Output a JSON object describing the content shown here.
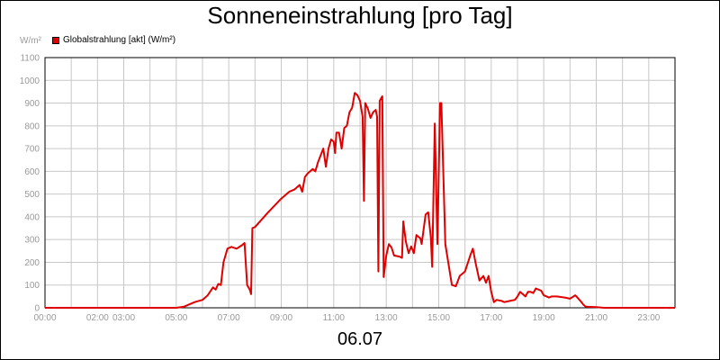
{
  "chart_data": {
    "type": "line",
    "title": "Sonneneinstrahlung [pro Tag]",
    "unit_label": "W/m²",
    "date_label": "06.07",
    "ylim": [
      0,
      1100
    ],
    "yticks": [
      0,
      100,
      200,
      300,
      400,
      500,
      600,
      700,
      800,
      900,
      1000,
      1100
    ],
    "xlim_hours": [
      0,
      24
    ],
    "xticks": [
      {
        "h": 0,
        "label": "00:00"
      },
      {
        "h": 2,
        "label": "02:00"
      },
      {
        "h": 3,
        "label": "03:00"
      },
      {
        "h": 5,
        "label": "05:00"
      },
      {
        "h": 7,
        "label": "07:00"
      },
      {
        "h": 9,
        "label": "09:00"
      },
      {
        "h": 11,
        "label": "11:00"
      },
      {
        "h": 13,
        "label": "13:00"
      },
      {
        "h": 15,
        "label": "15:00"
      },
      {
        "h": 17,
        "label": "17:00"
      },
      {
        "h": 19,
        "label": "19:00"
      },
      {
        "h": 21,
        "label": "21:00"
      },
      {
        "h": 23,
        "label": "23:00"
      }
    ],
    "grid": true,
    "legend_position": "top-left",
    "colors": {
      "series": "#e00000",
      "grid": "#c8c8c8",
      "tick": "#999999"
    },
    "series": [
      {
        "name": "Globalstrahlung [akt] (W/m²)",
        "points": [
          [
            0,
            0
          ],
          [
            5.0,
            0
          ],
          [
            5.3,
            5
          ],
          [
            5.5,
            15
          ],
          [
            5.7,
            25
          ],
          [
            6.0,
            35
          ],
          [
            6.2,
            55
          ],
          [
            6.4,
            90
          ],
          [
            6.5,
            80
          ],
          [
            6.6,
            105
          ],
          [
            6.7,
            100
          ],
          [
            6.8,
            200
          ],
          [
            6.95,
            260
          ],
          [
            7.1,
            268
          ],
          [
            7.3,
            260
          ],
          [
            7.5,
            275
          ],
          [
            7.6,
            285
          ],
          [
            7.7,
            100
          ],
          [
            7.8,
            80
          ],
          [
            7.85,
            60
          ],
          [
            7.9,
            350
          ],
          [
            8.0,
            355
          ],
          [
            8.5,
            420
          ],
          [
            9.0,
            480
          ],
          [
            9.3,
            510
          ],
          [
            9.5,
            520
          ],
          [
            9.7,
            540
          ],
          [
            9.8,
            510
          ],
          [
            9.9,
            575
          ],
          [
            10.0,
            590
          ],
          [
            10.2,
            610
          ],
          [
            10.3,
            600
          ],
          [
            10.4,
            640
          ],
          [
            10.6,
            700
          ],
          [
            10.7,
            620
          ],
          [
            10.8,
            700
          ],
          [
            10.9,
            740
          ],
          [
            11.0,
            730
          ],
          [
            11.05,
            680
          ],
          [
            11.1,
            770
          ],
          [
            11.2,
            770
          ],
          [
            11.3,
            700
          ],
          [
            11.4,
            790
          ],
          [
            11.5,
            800
          ],
          [
            11.6,
            860
          ],
          [
            11.7,
            880
          ],
          [
            11.8,
            945
          ],
          [
            11.9,
            935
          ],
          [
            12.0,
            910
          ],
          [
            12.1,
            840
          ],
          [
            12.15,
            470
          ],
          [
            12.2,
            900
          ],
          [
            12.3,
            875
          ],
          [
            12.4,
            835
          ],
          [
            12.5,
            860
          ],
          [
            12.6,
            870
          ],
          [
            12.65,
            840
          ],
          [
            12.7,
            160
          ],
          [
            12.75,
            910
          ],
          [
            12.85,
            930
          ],
          [
            12.9,
            135
          ],
          [
            13.0,
            230
          ],
          [
            13.1,
            280
          ],
          [
            13.2,
            265
          ],
          [
            13.3,
            230
          ],
          [
            13.5,
            225
          ],
          [
            13.6,
            220
          ],
          [
            13.65,
            380
          ],
          [
            13.75,
            290
          ],
          [
            13.85,
            240
          ],
          [
            13.95,
            270
          ],
          [
            14.05,
            240
          ],
          [
            14.15,
            320
          ],
          [
            14.3,
            305
          ],
          [
            14.35,
            280
          ],
          [
            14.5,
            410
          ],
          [
            14.6,
            420
          ],
          [
            14.7,
            310
          ],
          [
            14.75,
            180
          ],
          [
            14.85,
            810
          ],
          [
            14.95,
            280
          ],
          [
            15.05,
            900
          ],
          [
            15.1,
            900
          ],
          [
            15.25,
            280
          ],
          [
            15.5,
            100
          ],
          [
            15.65,
            95
          ],
          [
            15.8,
            140
          ],
          [
            16.0,
            160
          ],
          [
            16.2,
            230
          ],
          [
            16.3,
            260
          ],
          [
            16.4,
            200
          ],
          [
            16.55,
            120
          ],
          [
            16.7,
            140
          ],
          [
            16.8,
            110
          ],
          [
            16.9,
            140
          ],
          [
            17.0,
            70
          ],
          [
            17.1,
            25
          ],
          [
            17.2,
            35
          ],
          [
            17.4,
            30
          ],
          [
            17.5,
            25
          ],
          [
            17.7,
            30
          ],
          [
            17.9,
            35
          ],
          [
            18.0,
            50
          ],
          [
            18.1,
            70
          ],
          [
            18.2,
            60
          ],
          [
            18.3,
            50
          ],
          [
            18.4,
            70
          ],
          [
            18.5,
            70
          ],
          [
            18.6,
            65
          ],
          [
            18.7,
            85
          ],
          [
            18.9,
            75
          ],
          [
            19.0,
            55
          ],
          [
            19.2,
            45
          ],
          [
            19.3,
            50
          ],
          [
            19.5,
            50
          ],
          [
            19.8,
            45
          ],
          [
            20.0,
            40
          ],
          [
            20.2,
            55
          ],
          [
            20.4,
            30
          ],
          [
            20.5,
            15
          ],
          [
            20.6,
            5
          ],
          [
            21.0,
            3
          ],
          [
            21.3,
            0
          ],
          [
            24,
            0
          ]
        ]
      }
    ]
  }
}
